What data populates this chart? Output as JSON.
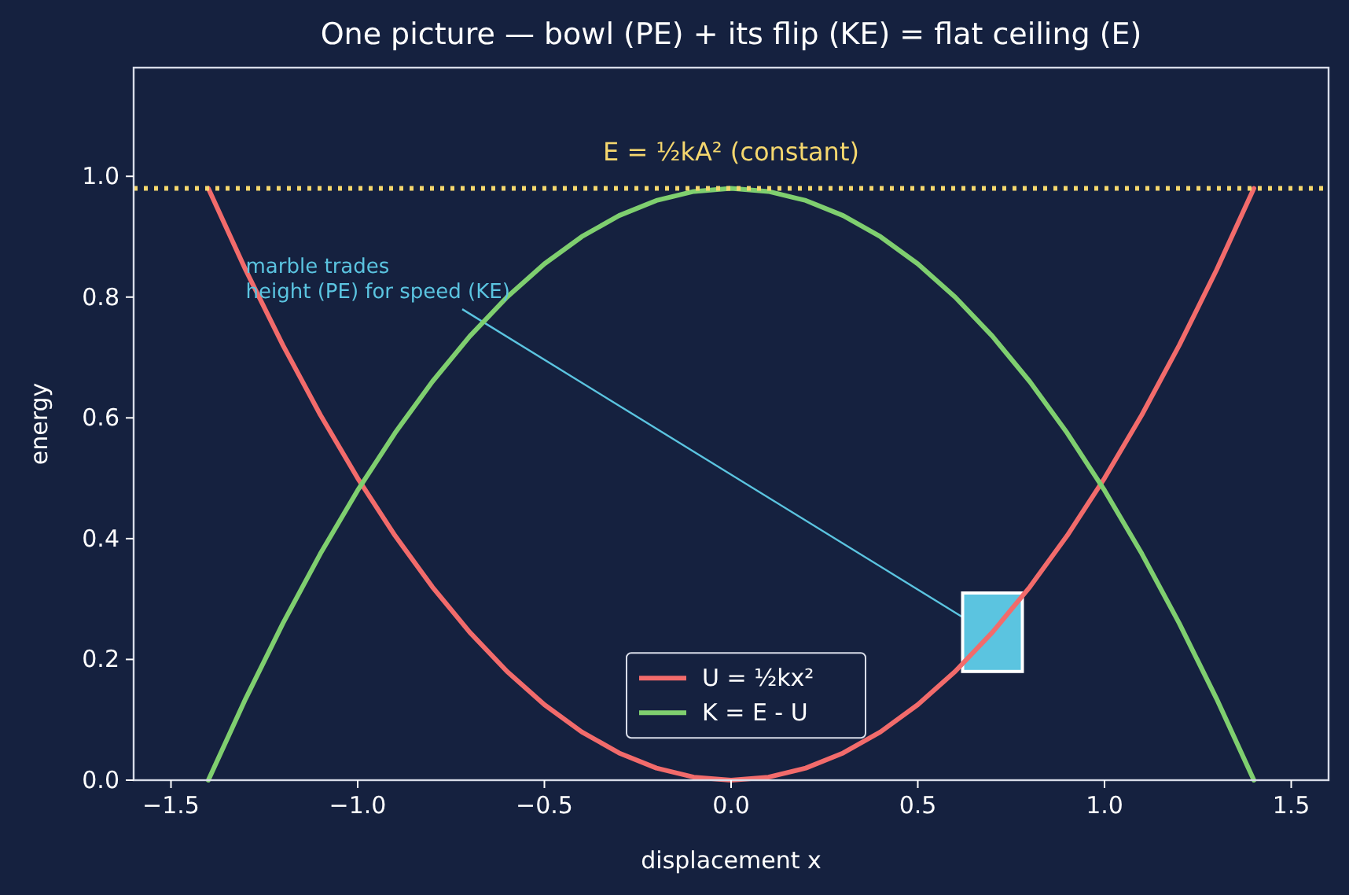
{
  "chart_data": {
    "type": "line",
    "title": "One picture — bowl (PE) + its flip (KE) = flat ceiling (E)",
    "xlabel": "displacement x",
    "ylabel": "energy",
    "x": [
      -1.4,
      -1.3,
      -1.2,
      -1.1,
      -1.0,
      -0.9,
      -0.8,
      -0.7,
      -0.6,
      -0.5,
      -0.4,
      -0.3,
      -0.2,
      -0.1,
      0,
      0.1,
      0.2,
      0.3,
      0.4,
      0.5,
      0.6,
      0.7,
      0.8,
      0.9,
      1.0,
      1.1,
      1.2,
      1.3,
      1.4
    ],
    "series": [
      {
        "name": "U = ½kx²",
        "color": "#f26b6b",
        "values": [
          0.98,
          0.845,
          0.72,
          0.605,
          0.5,
          0.405,
          0.32,
          0.245,
          0.18,
          0.125,
          0.08,
          0.045,
          0.02,
          0.005,
          0,
          0.005,
          0.02,
          0.045,
          0.08,
          0.125,
          0.18,
          0.245,
          0.32,
          0.405,
          0.5,
          0.605,
          0.72,
          0.845,
          0.98
        ]
      },
      {
        "name": "K = E - U",
        "color": "#7fcf6f",
        "values": [
          0,
          0.135,
          0.26,
          0.375,
          0.48,
          0.575,
          0.66,
          0.735,
          0.8,
          0.855,
          0.9,
          0.935,
          0.96,
          0.975,
          0.98,
          0.975,
          0.96,
          0.935,
          0.9,
          0.855,
          0.8,
          0.735,
          0.66,
          0.575,
          0.48,
          0.375,
          0.26,
          0.135,
          0
        ]
      }
    ],
    "ref_lines": [
      {
        "axis": "y",
        "value": 0.98,
        "label": "E = ½kA² (constant)",
        "color": "#f5d76e",
        "line_style": "dotted"
      }
    ],
    "annotations": [
      "marble trades\nheight (PE) for speed (KE)"
    ],
    "xlim": [
      -1.6,
      1.6
    ],
    "ylim": [
      0,
      1.18
    ],
    "xticks": [
      {
        "value": -1.5,
        "label": "−1.5"
      },
      {
        "value": -1,
        "label": "−1.0"
      },
      {
        "value": -0.5,
        "label": "−0.5"
      },
      {
        "value": 0,
        "label": "0.0"
      },
      {
        "value": 0.5,
        "label": "0.5"
      },
      {
        "value": 1,
        "label": "1.0"
      },
      {
        "value": 1.5,
        "label": "1.5"
      }
    ],
    "yticks": [
      {
        "value": 0,
        "label": "0.0"
      },
      {
        "value": 0.2,
        "label": "0.2"
      },
      {
        "value": 0.4,
        "label": "0.4"
      },
      {
        "value": 0.6,
        "label": "0.6"
      },
      {
        "value": 0.8,
        "label": "0.8"
      },
      {
        "value": 1,
        "label": "1.0"
      }
    ],
    "legend": "bottom",
    "grid": false,
    "marker": "none",
    "line_style": "solid"
  }
}
